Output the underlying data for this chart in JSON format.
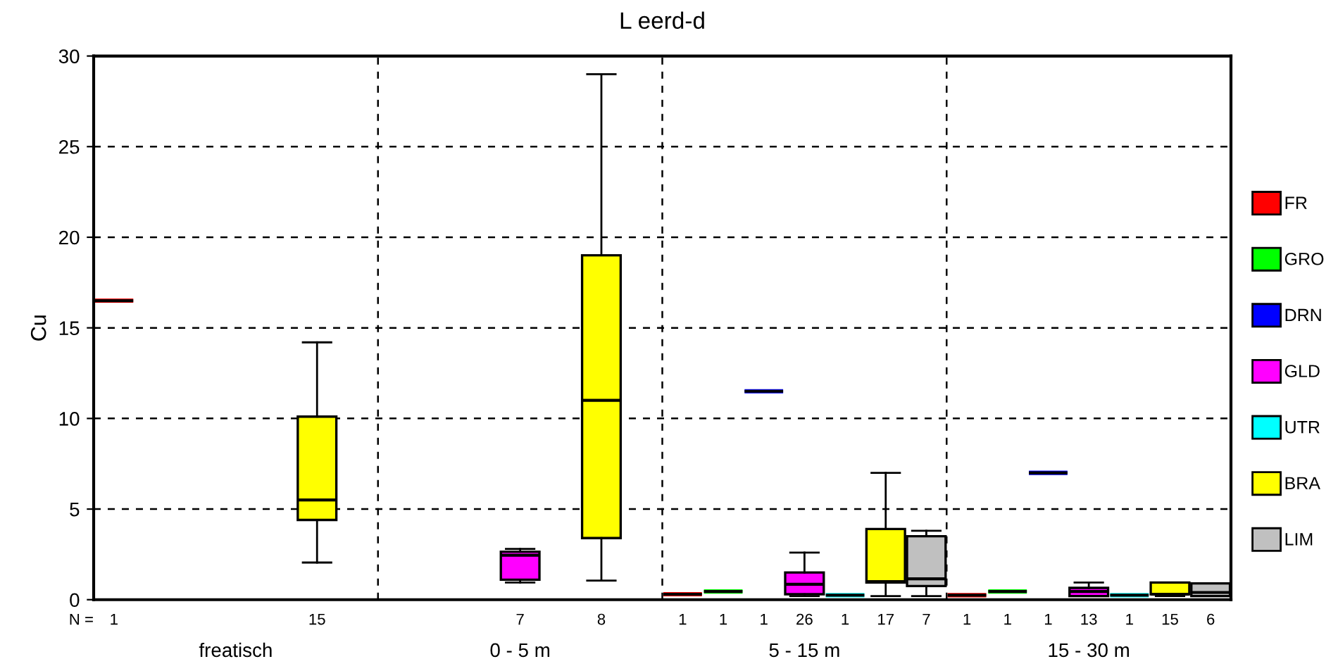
{
  "chart_data": {
    "type": "box",
    "title": "L eerd-d",
    "ylabel": "Cu",
    "categories": [
      "freatisch",
      "0 - 5 m",
      "5 - 15 m",
      "15 - 30 m"
    ],
    "ylim": [
      0,
      30
    ],
    "yticks": [
      0,
      5,
      10,
      15,
      20,
      25,
      30
    ],
    "grid": true,
    "legend": "right",
    "annotations": [
      "N ="
    ],
    "series": [
      {
        "name": "FR",
        "color": "#ff0000",
        "value_labels": [
          "1",
          null,
          "1",
          "1"
        ],
        "boxes": [
          {
            "low": 16.5,
            "q1": 16.5,
            "median": 16.5,
            "q3": 16.5,
            "high": 16.5
          },
          null,
          {
            "low": 0.3,
            "q1": 0.3,
            "median": 0.3,
            "q3": 0.3,
            "high": 0.3
          },
          {
            "low": 0.25,
            "q1": 0.25,
            "median": 0.25,
            "q3": 0.25,
            "high": 0.25
          }
        ]
      },
      {
        "name": "GRO",
        "color": "#00ff00",
        "value_labels": [
          null,
          null,
          "1",
          "1"
        ],
        "boxes": [
          null,
          null,
          {
            "low": 0.45,
            "q1": 0.45,
            "median": 0.45,
            "q3": 0.45,
            "high": 0.45
          },
          {
            "low": 0.45,
            "q1": 0.45,
            "median": 0.45,
            "q3": 0.45,
            "high": 0.45
          }
        ]
      },
      {
        "name": "DRN",
        "color": "#0000ff",
        "value_labels": [
          null,
          null,
          "1",
          "1"
        ],
        "boxes": [
          null,
          null,
          {
            "low": 11.5,
            "q1": 11.5,
            "median": 11.5,
            "q3": 11.5,
            "high": 11.5
          },
          {
            "low": 7.0,
            "q1": 7.0,
            "median": 7.0,
            "q3": 7.0,
            "high": 7.0
          }
        ]
      },
      {
        "name": "GLD",
        "color": "#ff00ff",
        "value_labels": [
          null,
          "7",
          "26",
          "13"
        ],
        "boxes": [
          null,
          {
            "low": 0.95,
            "q1": 1.1,
            "median": 2.45,
            "q3": 2.65,
            "high": 2.8
          },
          {
            "low": 0.2,
            "q1": 0.3,
            "median": 0.85,
            "q3": 1.5,
            "high": 2.6
          },
          {
            "low": 0.2,
            "q1": 0.2,
            "median": 0.45,
            "q3": 0.65,
            "high": 0.95
          }
        ]
      },
      {
        "name": "UTR",
        "color": "#00ffff",
        "value_labels": [
          null,
          null,
          "1",
          "1"
        ],
        "boxes": [
          null,
          null,
          {
            "low": 0.25,
            "q1": 0.25,
            "median": 0.25,
            "q3": 0.25,
            "high": 0.25
          },
          {
            "low": 0.25,
            "q1": 0.25,
            "median": 0.25,
            "q3": 0.25,
            "high": 0.25
          }
        ]
      },
      {
        "name": "BRA",
        "color": "#ffff00",
        "value_labels": [
          "15",
          "8",
          "17",
          "15"
        ],
        "boxes": [
          {
            "low": 2.05,
            "q1": 4.4,
            "median": 5.5,
            "q3": 10.1,
            "high": 14.2
          },
          {
            "low": 1.05,
            "q1": 3.4,
            "median": 11.0,
            "q3": 19.0,
            "high": 29.0
          },
          {
            "low": 0.2,
            "q1": 0.95,
            "median": 1.0,
            "q3": 3.9,
            "high": 7.0
          },
          {
            "low": 0.2,
            "q1": 0.3,
            "median": 0.3,
            "q3": 0.95,
            "high": 0.95
          }
        ]
      },
      {
        "name": "LIM",
        "color": "#c0c0c0",
        "value_labels": [
          null,
          null,
          "7",
          "6"
        ],
        "boxes": [
          null,
          null,
          {
            "low": 0.2,
            "q1": 0.75,
            "median": 1.15,
            "q3": 3.5,
            "high": 3.8
          },
          {
            "low": 0.2,
            "q1": 0.2,
            "median": 0.4,
            "q3": 0.9,
            "high": 0.9
          }
        ]
      }
    ]
  }
}
